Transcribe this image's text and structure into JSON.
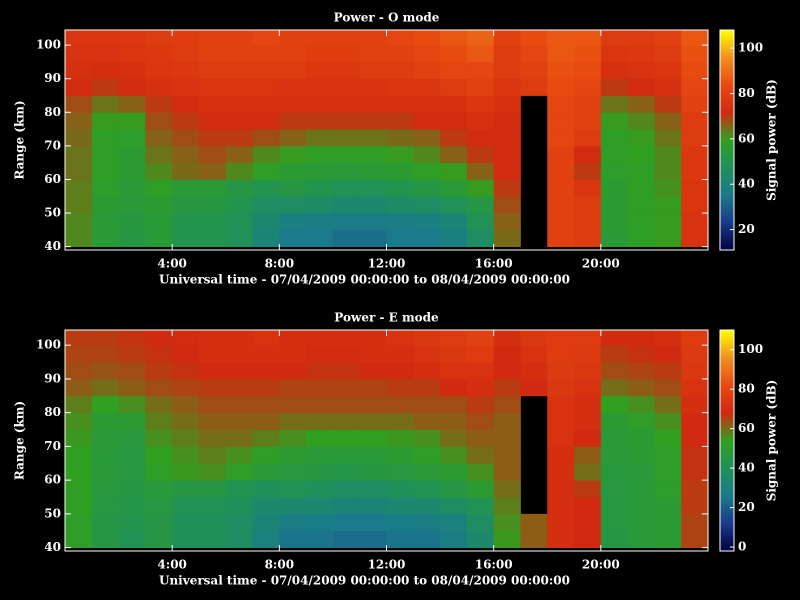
{
  "chart_data": [
    {
      "type": "heatmap",
      "title": "Power - O mode",
      "xlabel": "Universal time - 07/04/2009 00:00:00 to 08/04/2009 00:00:00",
      "ylabel": "Range (km)",
      "zlabel": "Signal power (dB)",
      "xlim": [
        0,
        24
      ],
      "ylim": [
        39,
        104.5
      ],
      "zlim": [
        11,
        108
      ],
      "xticks": [
        {
          "value": 4,
          "label": "4:00"
        },
        {
          "value": 8,
          "label": "8:00"
        },
        {
          "value": 12,
          "label": "12:00"
        },
        {
          "value": 16,
          "label": "16:00"
        },
        {
          "value": 20,
          "label": "20:00"
        }
      ],
      "yticks": [
        40,
        50,
        60,
        70,
        80,
        90,
        100
      ],
      "zticks": [
        20,
        40,
        60,
        80,
        100
      ],
      "colormap": [
        "#000040",
        "#1a3a8a",
        "#1a7a8a",
        "#20905a",
        "#30a020",
        "#d02a10",
        "#e84a10",
        "#f09020",
        "#ffff00"
      ],
      "xbins": [
        0,
        1,
        2,
        3,
        4,
        5,
        6,
        7,
        8,
        9,
        10,
        11,
        12,
        13,
        14,
        15,
        16,
        17,
        18,
        19,
        20,
        21,
        22,
        23,
        24
      ],
      "ybins": [
        40,
        45,
        50,
        55,
        60,
        65,
        70,
        75,
        80,
        85,
        90,
        95,
        100,
        105
      ],
      "z": [
        [
          62,
          55,
          52,
          55,
          50,
          50,
          48,
          40,
          35,
          35,
          33,
          33,
          35,
          35,
          38,
          45,
          65,
          null,
          80,
          78,
          55,
          58,
          60,
          75
        ],
        [
          62,
          55,
          53,
          55,
          50,
          50,
          48,
          42,
          38,
          37,
          36,
          36,
          37,
          38,
          40,
          48,
          66,
          null,
          80,
          78,
          56,
          58,
          60,
          75
        ],
        [
          63,
          56,
          54,
          56,
          52,
          52,
          50,
          45,
          45,
          44,
          42,
          42,
          44,
          45,
          48,
          52,
          68,
          null,
          80,
          78,
          56,
          58,
          60,
          76
        ],
        [
          63,
          57,
          55,
          58,
          55,
          55,
          52,
          50,
          52,
          50,
          48,
          48,
          50,
          52,
          55,
          60,
          70,
          null,
          80,
          76,
          56,
          58,
          61,
          76
        ],
        [
          64,
          58,
          56,
          62,
          65,
          66,
          62,
          58,
          56,
          55,
          54,
          55,
          56,
          58,
          60,
          66,
          72,
          null,
          80,
          70,
          57,
          58,
          62,
          77
        ],
        [
          64,
          58,
          56,
          64,
          66,
          68,
          66,
          62,
          60,
          58,
          58,
          58,
          60,
          62,
          66,
          70,
          72,
          null,
          80,
          72,
          58,
          59,
          62,
          77
        ],
        [
          65,
          58,
          57,
          66,
          68,
          70,
          70,
          68,
          66,
          64,
          64,
          64,
          65,
          66,
          70,
          72,
          72,
          null,
          82,
          78,
          58,
          60,
          64,
          78
        ],
        [
          66,
          60,
          60,
          68,
          70,
          72,
          72,
          72,
          70,
          70,
          70,
          70,
          70,
          72,
          72,
          74,
          72,
          null,
          82,
          80,
          60,
          62,
          66,
          78
        ],
        [
          68,
          64,
          66,
          70,
          72,
          74,
          74,
          74,
          74,
          74,
          74,
          74,
          74,
          74,
          74,
          76,
          74,
          null,
          82,
          80,
          64,
          66,
          70,
          80
        ],
        [
          72,
          70,
          72,
          74,
          75,
          76,
          76,
          76,
          75,
          75,
          75,
          75,
          76,
          76,
          78,
          80,
          76,
          78,
          84,
          82,
          70,
          72,
          74,
          82
        ],
        [
          74,
          73,
          74,
          76,
          77,
          78,
          78,
          78,
          78,
          77,
          77,
          78,
          78,
          80,
          82,
          82,
          78,
          80,
          85,
          84,
          74,
          75,
          76,
          84
        ],
        [
          75,
          75,
          76,
          77,
          78,
          80,
          80,
          80,
          80,
          79,
          79,
          80,
          80,
          82,
          84,
          86,
          78,
          82,
          86,
          85,
          76,
          77,
          78,
          85
        ],
        [
          76,
          76,
          77,
          78,
          79,
          80,
          80,
          82,
          80,
          80,
          80,
          80,
          82,
          84,
          86,
          88,
          80,
          84,
          86,
          86,
          78,
          78,
          80,
          86
        ]
      ]
    },
    {
      "type": "heatmap",
      "title": "Power - E mode",
      "xlabel": "Universal time - 07/04/2009 00:00:00 to 08/04/2009 00:00:00",
      "ylabel": "Range (km)",
      "zlabel": "Signal power (dB)",
      "xlim": [
        0,
        24
      ],
      "ylim": [
        39,
        104.5
      ],
      "zlim": [
        -2,
        110
      ],
      "xticks": [
        {
          "value": 4,
          "label": "4:00"
        },
        {
          "value": 8,
          "label": "8:00"
        },
        {
          "value": 12,
          "label": "12:00"
        },
        {
          "value": 16,
          "label": "16:00"
        },
        {
          "value": 20,
          "label": "20:00"
        }
      ],
      "yticks": [
        40,
        50,
        60,
        70,
        80,
        90,
        100
      ],
      "zticks": [
        0,
        20,
        40,
        60,
        80,
        100
      ],
      "colormap": [
        "#000040",
        "#1a3a8a",
        "#1a7a8a",
        "#20905a",
        "#30a020",
        "#d02a10",
        "#e84a10",
        "#f09020",
        "#ffff00"
      ],
      "xbins": [
        0,
        1,
        2,
        3,
        4,
        5,
        6,
        7,
        8,
        9,
        10,
        11,
        12,
        13,
        14,
        15,
        16,
        17,
        18,
        19,
        20,
        21,
        22,
        23,
        24
      ],
      "ybins": [
        40,
        45,
        50,
        55,
        60,
        65,
        70,
        75,
        80,
        85,
        90,
        95,
        100,
        105
      ],
      "z": [
        [
          52,
          45,
          42,
          45,
          40,
          40,
          38,
          30,
          25,
          25,
          23,
          23,
          25,
          25,
          28,
          35,
          55,
          62,
          70,
          68,
          45,
          48,
          50,
          65
        ],
        [
          52,
          45,
          43,
          45,
          40,
          40,
          38,
          32,
          28,
          27,
          26,
          26,
          27,
          28,
          30,
          38,
          56,
          62,
          70,
          68,
          46,
          48,
          50,
          65
        ],
        [
          53,
          46,
          44,
          46,
          42,
          42,
          40,
          35,
          35,
          34,
          32,
          32,
          34,
          35,
          38,
          42,
          58,
          null,
          70,
          68,
          46,
          48,
          50,
          66
        ],
        [
          53,
          47,
          45,
          48,
          45,
          45,
          42,
          40,
          42,
          40,
          38,
          38,
          40,
          42,
          45,
          50,
          60,
          null,
          70,
          66,
          46,
          48,
          51,
          66
        ],
        [
          54,
          48,
          46,
          52,
          55,
          56,
          52,
          48,
          46,
          45,
          44,
          45,
          46,
          48,
          50,
          56,
          62,
          null,
          70,
          60,
          47,
          48,
          52,
          67
        ],
        [
          54,
          48,
          46,
          54,
          56,
          58,
          56,
          52,
          50,
          48,
          48,
          48,
          50,
          52,
          56,
          60,
          62,
          null,
          70,
          62,
          48,
          49,
          52,
          67
        ],
        [
          55,
          48,
          47,
          56,
          58,
          60,
          60,
          58,
          56,
          54,
          54,
          54,
          55,
          56,
          60,
          62,
          62,
          null,
          72,
          68,
          48,
          50,
          54,
          68
        ],
        [
          56,
          50,
          50,
          58,
          60,
          62,
          62,
          62,
          60,
          60,
          60,
          60,
          60,
          62,
          62,
          64,
          62,
          null,
          72,
          70,
          50,
          52,
          56,
          68
        ],
        [
          58,
          54,
          56,
          60,
          62,
          64,
          64,
          64,
          64,
          64,
          64,
          64,
          64,
          64,
          64,
          66,
          64,
          null,
          72,
          70,
          54,
          56,
          60,
          70
        ],
        [
          62,
          60,
          62,
          64,
          65,
          66,
          66,
          66,
          65,
          65,
          65,
          65,
          66,
          66,
          68,
          70,
          66,
          68,
          74,
          72,
          60,
          62,
          64,
          72
        ],
        [
          64,
          63,
          64,
          66,
          67,
          68,
          68,
          68,
          68,
          67,
          67,
          68,
          68,
          70,
          72,
          72,
          68,
          70,
          75,
          74,
          64,
          65,
          66,
          74
        ],
        [
          65,
          65,
          66,
          67,
          68,
          70,
          70,
          70,
          70,
          69,
          69,
          70,
          70,
          72,
          74,
          76,
          68,
          72,
          76,
          75,
          66,
          67,
          68,
          75
        ],
        [
          66,
          66,
          67,
          68,
          69,
          70,
          70,
          72,
          70,
          70,
          70,
          70,
          72,
          74,
          76,
          78,
          70,
          74,
          76,
          76,
          68,
          68,
          70,
          76
        ]
      ]
    }
  ]
}
